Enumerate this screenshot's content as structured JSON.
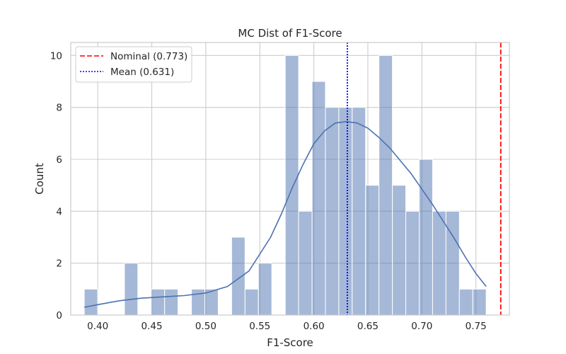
{
  "chart_data": {
    "type": "bar",
    "title": "MC Dist of F1-Score",
    "xlabel": "F1-Score",
    "ylabel": "Count",
    "xlim": [
      0.375,
      0.781
    ],
    "ylim": [
      0,
      10.5
    ],
    "xticks": [
      0.4,
      0.45,
      0.5,
      0.55,
      0.6,
      0.65,
      0.7,
      0.75
    ],
    "xtick_labels": [
      "0.40",
      "0.45",
      "0.50",
      "0.55",
      "0.60",
      "0.65",
      "0.70",
      "0.75"
    ],
    "yticks": [
      0,
      2,
      4,
      6,
      8,
      10
    ],
    "ytick_labels": [
      "0",
      "2",
      "4",
      "6",
      "8",
      "10"
    ],
    "grid": true,
    "legend_position": "top-left",
    "bar_color": "#4c72b0",
    "bins": [
      {
        "x0": 0.3875,
        "x1": 0.3999,
        "count": 1
      },
      {
        "x0": 0.3999,
        "x1": 0.4123,
        "count": 0
      },
      {
        "x0": 0.4123,
        "x1": 0.4247,
        "count": 0
      },
      {
        "x0": 0.4247,
        "x1": 0.4371,
        "count": 2
      },
      {
        "x0": 0.4371,
        "x1": 0.4495,
        "count": 0
      },
      {
        "x0": 0.4495,
        "x1": 0.4619,
        "count": 1
      },
      {
        "x0": 0.4619,
        "x1": 0.4743,
        "count": 1
      },
      {
        "x0": 0.4743,
        "x1": 0.4867,
        "count": 0
      },
      {
        "x0": 0.4867,
        "x1": 0.4991,
        "count": 1
      },
      {
        "x0": 0.4991,
        "x1": 0.5115,
        "count": 1
      },
      {
        "x0": 0.5115,
        "x1": 0.5239,
        "count": 0
      },
      {
        "x0": 0.5239,
        "x1": 0.5363,
        "count": 3
      },
      {
        "x0": 0.5363,
        "x1": 0.5487,
        "count": 1
      },
      {
        "x0": 0.5487,
        "x1": 0.5611,
        "count": 2
      },
      {
        "x0": 0.5611,
        "x1": 0.5735,
        "count": 0
      },
      {
        "x0": 0.5735,
        "x1": 0.5859,
        "count": 10
      },
      {
        "x0": 0.5859,
        "x1": 0.5983,
        "count": 4
      },
      {
        "x0": 0.5983,
        "x1": 0.6107,
        "count": 9
      },
      {
        "x0": 0.6107,
        "x1": 0.6231,
        "count": 8
      },
      {
        "x0": 0.6231,
        "x1": 0.6355,
        "count": 8
      },
      {
        "x0": 0.6355,
        "x1": 0.6479,
        "count": 8
      },
      {
        "x0": 0.6479,
        "x1": 0.6603,
        "count": 5
      },
      {
        "x0": 0.6603,
        "x1": 0.6727,
        "count": 10
      },
      {
        "x0": 0.6727,
        "x1": 0.6851,
        "count": 5
      },
      {
        "x0": 0.6851,
        "x1": 0.6975,
        "count": 4
      },
      {
        "x0": 0.6975,
        "x1": 0.7099,
        "count": 6
      },
      {
        "x0": 0.7099,
        "x1": 0.7223,
        "count": 4
      },
      {
        "x0": 0.7223,
        "x1": 0.7347,
        "count": 4
      },
      {
        "x0": 0.7347,
        "x1": 0.7471,
        "count": 1
      },
      {
        "x0": 0.7471,
        "x1": 0.7595,
        "count": 1
      }
    ],
    "kde": {
      "color": "#4c72b0",
      "x": [
        0.3875,
        0.4,
        0.42,
        0.44,
        0.46,
        0.48,
        0.5,
        0.52,
        0.54,
        0.56,
        0.57,
        0.58,
        0.59,
        0.6,
        0.61,
        0.62,
        0.63,
        0.64,
        0.65,
        0.66,
        0.67,
        0.68,
        0.69,
        0.7,
        0.71,
        0.72,
        0.73,
        0.74,
        0.75,
        0.7595
      ],
      "y": [
        0.3,
        0.4,
        0.55,
        0.65,
        0.7,
        0.75,
        0.85,
        1.1,
        1.7,
        3.0,
        3.9,
        4.9,
        5.8,
        6.6,
        7.1,
        7.4,
        7.45,
        7.4,
        7.2,
        6.85,
        6.45,
        5.95,
        5.45,
        4.85,
        4.25,
        3.6,
        2.95,
        2.25,
        1.6,
        1.1
      ]
    },
    "reference_lines": [
      {
        "label": "Nominal (0.773)",
        "x": 0.773,
        "color": "#ff0000",
        "style": "dashed"
      },
      {
        "label": "Mean (0.631)",
        "x": 0.631,
        "color": "#0000ff",
        "style": "dotted"
      }
    ]
  }
}
